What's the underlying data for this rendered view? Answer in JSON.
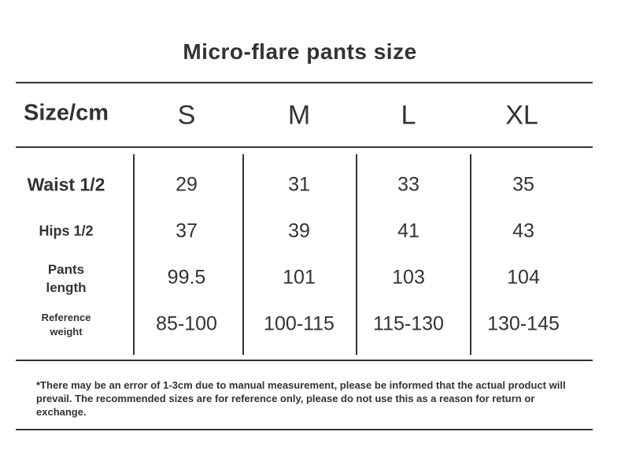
{
  "title": "Micro-flare pants size",
  "header": {
    "label": "Size/cm",
    "sizes": [
      "S",
      "M",
      "L",
      "XL"
    ]
  },
  "rows": [
    {
      "label": "Waist 1/2",
      "values": [
        "29",
        "31",
        "33",
        "35"
      ]
    },
    {
      "label": "Hips 1/2",
      "values": [
        "37",
        "39",
        "41",
        "43"
      ]
    },
    {
      "label": "Pants length",
      "label_lines": [
        "Pants",
        "length"
      ],
      "values": [
        "99.5",
        "101",
        "103",
        "104"
      ]
    },
    {
      "label": "Reference weight",
      "label_lines": [
        "Reference",
        "weight"
      ],
      "values": [
        "85-100",
        "100-115",
        "115-130",
        "130-145"
      ]
    }
  ],
  "note": "*There may be an error of 1-3cm due to manual measurement, please be informed that the actual product will prevail.   The recommended sizes are for reference only, please do not use this as a reason for return or exchange."
}
